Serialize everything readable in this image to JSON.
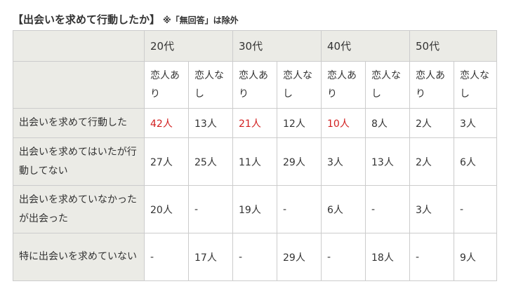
{
  "caption": {
    "title": "【出会いを求めて行動したか】",
    "note": "※「無回答」は除外"
  },
  "table": {
    "age_groups": [
      "20代",
      "30代",
      "40代",
      "50代"
    ],
    "subheaders": [
      "恋人あり",
      "恋人なし",
      "恋人あり",
      "恋人なし",
      "恋人あり",
      "恋人なし",
      "恋人あり",
      "恋人なし"
    ],
    "rows": [
      {
        "label": "出会いを求めて行動した",
        "values": [
          "42人",
          "13人",
          "21人",
          "12人",
          "10人",
          "8人",
          "2人",
          "3人"
        ]
      },
      {
        "label": "出会いを求めてはいたが行動してない",
        "values": [
          "27人",
          "25人",
          "11人",
          "29人",
          "3人",
          "13人",
          "2人",
          "6人"
        ]
      },
      {
        "label": "出会いを求めていなかったが出会った",
        "values": [
          "20人",
          "-",
          "19人",
          "-",
          "6人",
          "-",
          "3人",
          "-"
        ]
      },
      {
        "label": "特に出会いを求めていない",
        "values": [
          "-",
          "17人",
          "-",
          "29人",
          "-",
          "18人",
          "-",
          "9人"
        ]
      }
    ],
    "highlight_color": "#d22020",
    "header_bg": "#ebebe6"
  }
}
